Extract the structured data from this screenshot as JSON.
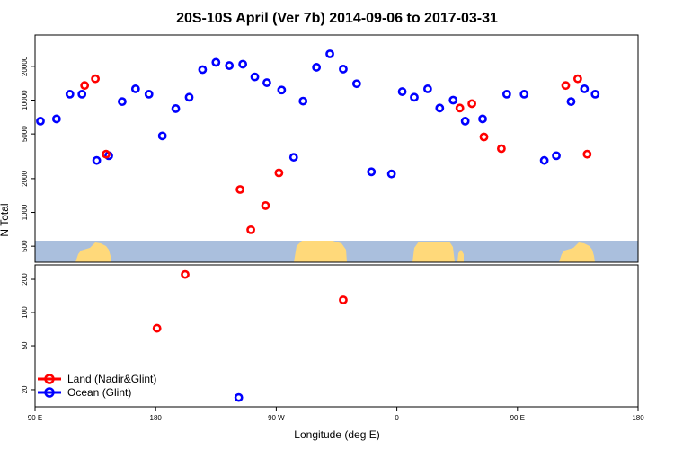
{
  "chart_data": {
    "type": "scatter",
    "title": "20S-10S April (Ver 7b)   2014-09-06 to 2017-03-31",
    "xlabel": "Longitude (deg E)",
    "ylabel": "N Total",
    "x_ticks": [
      "90 E",
      "180",
      "90 W",
      "0",
      "90 E",
      "180"
    ],
    "x_tick_values": [
      90,
      180,
      270,
      360,
      450,
      540
    ],
    "xlim": [
      90,
      540
    ],
    "top_panel": {
      "yscale": "log",
      "ylim": [
        360,
        38000
      ],
      "y_ticks": [
        500,
        1000,
        2000,
        5000,
        10000,
        20000
      ]
    },
    "bottom_panel": {
      "yscale": "log",
      "ylim": [
        14,
        270
      ],
      "y_ticks": [
        20,
        50,
        100,
        200
      ]
    },
    "series": [
      {
        "name": "Land (Nadir&Glint)",
        "color": "#ff0000",
        "top_points": [
          [
            127,
            13500
          ],
          [
            135,
            15500
          ],
          [
            143,
            3300
          ],
          [
            202,
            280
          ],
          [
            243,
            1600
          ],
          [
            251,
            700
          ],
          [
            262,
            1150
          ],
          [
            272,
            2250
          ],
          [
            407,
            8500
          ],
          [
            416,
            9300
          ],
          [
            425,
            4700
          ],
          [
            438,
            3700
          ],
          [
            486,
            13500
          ],
          [
            495,
            15500
          ],
          [
            502,
            3300
          ]
        ],
        "bottom_points": [
          [
            181,
            72
          ],
          [
            320,
            130
          ]
        ]
      },
      {
        "name": "Ocean (Glint)",
        "color": "#0000ff",
        "top_points": [
          [
            94,
            6500
          ],
          [
            106,
            6800
          ],
          [
            116,
            11300
          ],
          [
            125,
            11300
          ],
          [
            136,
            2900
          ],
          [
            145,
            3200
          ],
          [
            155,
            9700
          ],
          [
            165,
            12600
          ],
          [
            175,
            11300
          ],
          [
            185,
            4800
          ],
          [
            195,
            8400
          ],
          [
            205,
            10600
          ],
          [
            215,
            18700
          ],
          [
            225,
            21700
          ],
          [
            235,
            20300
          ],
          [
            245,
            20900
          ],
          [
            254,
            16100
          ],
          [
            263,
            14300
          ],
          [
            274,
            12300
          ],
          [
            283,
            3100
          ],
          [
            290,
            9800
          ],
          [
            300,
            19600
          ],
          [
            310,
            25800
          ],
          [
            320,
            18900
          ],
          [
            330,
            14000
          ],
          [
            341,
            2300
          ],
          [
            356,
            2200
          ],
          [
            364,
            11900
          ],
          [
            373,
            10600
          ],
          [
            383,
            12600
          ],
          [
            392,
            8500
          ],
          [
            402,
            10000
          ],
          [
            411,
            6500
          ],
          [
            424,
            6800
          ],
          [
            442,
            11300
          ],
          [
            455,
            11300
          ],
          [
            470,
            2900
          ],
          [
            479,
            3200
          ],
          [
            490,
            9700
          ],
          [
            500,
            12600
          ],
          [
            508,
            11300
          ]
        ],
        "bottom_points": [
          [
            242,
            17
          ]
        ]
      }
    ],
    "legend": {
      "placement": "bottom-left",
      "entries": [
        {
          "label": "Land (Nadir&Glint)",
          "color": "#ff0000"
        },
        {
          "label": "Ocean (Glint)",
          "color": "#0000ff"
        }
      ]
    },
    "map_strip": {
      "ocean_color": "#aabfdd",
      "land_color": "#ffd97a"
    },
    "grid": false
  }
}
